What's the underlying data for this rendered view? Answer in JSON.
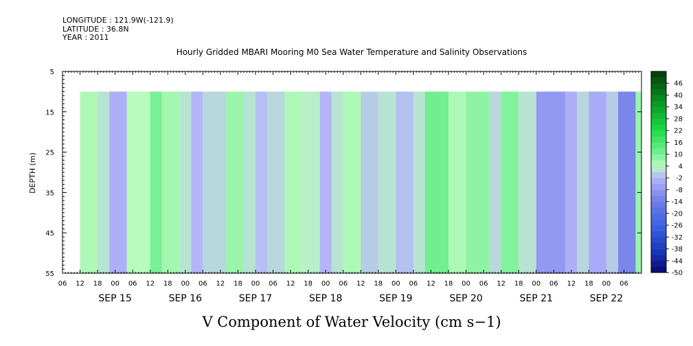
{
  "header": {
    "longitude_line": "LONGITUDE : 121.9W(-121.9)",
    "latitude_line": "LATITUDE : 36.8N",
    "year_line": "YEAR : 2011"
  },
  "chart_data": {
    "type": "heatmap",
    "title": "Hourly Gridded MBARI Mooring M0 Sea Water Temperature and Salinity Observations",
    "xlabel": "V Component of Water Velocity (cm s−1)",
    "ylabel": "DEPTH (m)",
    "y_ticks": [
      5,
      15,
      25,
      35,
      45,
      55
    ],
    "y_range": [
      5,
      55
    ],
    "y_inverted": true,
    "x_range_hours": [
      0,
      198
    ],
    "x_hour_ticks": [
      "06",
      "12",
      "18",
      "00",
      "06",
      "12",
      "18",
      "00",
      "06",
      "12",
      "18",
      "00",
      "06",
      "12",
      "18",
      "00",
      "06",
      "12",
      "18",
      "00",
      "06",
      "12",
      "18",
      "00",
      "06",
      "12",
      "18",
      "00",
      "06",
      "12",
      "18",
      "00",
      "06"
    ],
    "x_day_labels": [
      "SEP 15",
      "SEP 16",
      "SEP 17",
      "SEP 18",
      "SEP 19",
      "SEP 20",
      "SEP 21",
      "SEP 22"
    ],
    "data_start_hour": 6,
    "data_depth_range": [
      10,
      55
    ],
    "colorbar_levels": [
      "46",
      "40",
      "34",
      "28",
      "22",
      "16",
      "10",
      "4",
      "-2",
      "-8",
      "-14",
      "-20",
      "-26",
      "-32",
      "-38",
      "-44",
      "-50"
    ],
    "colorbar_range": [
      -50,
      52
    ],
    "colorbar_step": 3,
    "columns": [
      {
        "hours": [
          6,
          12
        ],
        "v": 5
      },
      {
        "hours": [
          12,
          16
        ],
        "v": 2
      },
      {
        "hours": [
          16,
          22
        ],
        "v": -3
      },
      {
        "hours": [
          22,
          30
        ],
        "v": 4
      },
      {
        "hours": [
          30,
          34
        ],
        "v": 10
      },
      {
        "hours": [
          34,
          40
        ],
        "v": 6
      },
      {
        "hours": [
          40,
          44
        ],
        "v": 2
      },
      {
        "hours": [
          44,
          48
        ],
        "v": -2
      },
      {
        "hours": [
          48,
          56
        ],
        "v": 1
      },
      {
        "hours": [
          56,
          62
        ],
        "v": 7
      },
      {
        "hours": [
          62,
          66
        ],
        "v": 2
      },
      {
        "hours": [
          66,
          70
        ],
        "v": -1
      },
      {
        "hours": [
          70,
          76
        ],
        "v": 1
      },
      {
        "hours": [
          76,
          82
        ],
        "v": 5
      },
      {
        "hours": [
          82,
          88
        ],
        "v": 3
      },
      {
        "hours": [
          88,
          92
        ],
        "v": -2
      },
      {
        "hours": [
          92,
          96
        ],
        "v": 2
      },
      {
        "hours": [
          96,
          102
        ],
        "v": 5
      },
      {
        "hours": [
          102,
          108
        ],
        "v": 0
      },
      {
        "hours": [
          108,
          114
        ],
        "v": 2
      },
      {
        "hours": [
          114,
          120
        ],
        "v": -1
      },
      {
        "hours": [
          120,
          124
        ],
        "v": 2
      },
      {
        "hours": [
          124,
          132
        ],
        "v": 11
      },
      {
        "hours": [
          132,
          138
        ],
        "v": 5
      },
      {
        "hours": [
          138,
          146
        ],
        "v": 8
      },
      {
        "hours": [
          146,
          150
        ],
        "v": 1
      },
      {
        "hours": [
          150,
          156
        ],
        "v": 9
      },
      {
        "hours": [
          156,
          162
        ],
        "v": 2
      },
      {
        "hours": [
          162,
          172
        ],
        "v": -8
      },
      {
        "hours": [
          172,
          176
        ],
        "v": -3
      },
      {
        "hours": [
          176,
          180
        ],
        "v": 1
      },
      {
        "hours": [
          180,
          186
        ],
        "v": -4
      },
      {
        "hours": [
          186,
          190
        ],
        "v": 0
      },
      {
        "hours": [
          190,
          196
        ],
        "v": -12
      },
      {
        "hours": [
          196,
          198
        ],
        "v": 7
      }
    ]
  }
}
